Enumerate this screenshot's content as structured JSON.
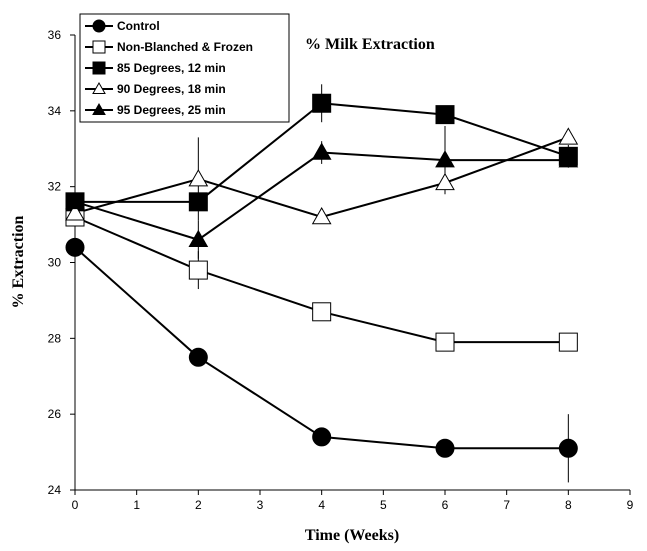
{
  "chart_data": {
    "type": "line",
    "title": "% Milk Extraction",
    "xlabel": "Time (Weeks)",
    "ylabel": "% Extraction",
    "xlim": [
      0,
      9
    ],
    "ylim": [
      24,
      36
    ],
    "x_ticks": [
      "0",
      "1",
      "2",
      "3",
      "4",
      "5",
      "6",
      "7",
      "8",
      "9"
    ],
    "y_ticks": [
      "24",
      "26",
      "28",
      "30",
      "32",
      "34",
      "36"
    ],
    "grid": false,
    "legend_position": "top-left",
    "x": [
      0,
      2,
      4,
      6,
      8
    ],
    "series": [
      {
        "name": "Control",
        "marker": "filled-circle",
        "values": [
          30.4,
          27.5,
          25.4,
          25.1,
          25.1
        ],
        "errors": [
          0.25,
          0.1,
          0.1,
          0.1,
          0.9
        ]
      },
      {
        "name": "Non-Blanched & Frozen",
        "marker": "open-square",
        "values": [
          31.2,
          29.8,
          28.7,
          27.9,
          27.9
        ],
        "errors": [
          0.1,
          0.5,
          0.1,
          0.1,
          0.1
        ]
      },
      {
        "name": "85 Degrees, 12 min",
        "marker": "filled-square",
        "values": [
          31.6,
          31.6,
          34.2,
          33.9,
          32.8
        ],
        "errors": [
          0.3,
          0.15,
          0.5,
          0.1,
          0.3
        ]
      },
      {
        "name": "90 Degrees, 18 min",
        "marker": "open-triangle",
        "values": [
          31.3,
          32.2,
          31.2,
          32.1,
          33.3
        ],
        "errors": [
          0.2,
          1.1,
          0.1,
          0.1,
          0.1
        ]
      },
      {
        "name": "95 Degrees, 25 min",
        "marker": "filled-triangle",
        "values": [
          31.6,
          30.6,
          32.9,
          32.7,
          32.7
        ],
        "errors": [
          0.1,
          0.5,
          0.3,
          0.9,
          0.1
        ]
      }
    ]
  }
}
